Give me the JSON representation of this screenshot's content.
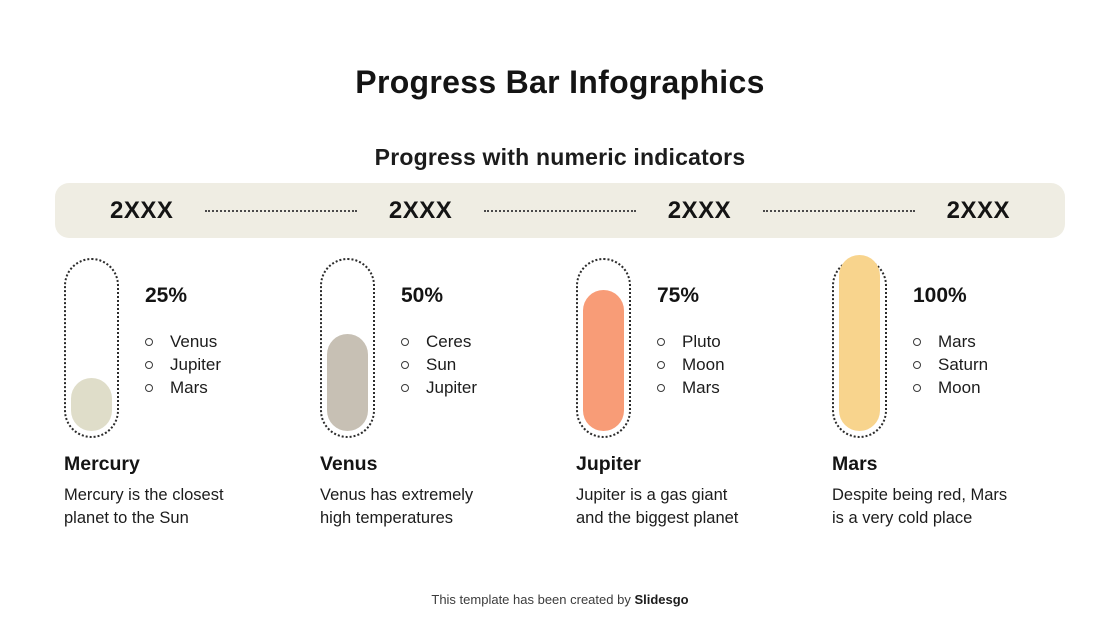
{
  "slide": {
    "title": "Progress Bar Infographics",
    "subtitle": "Progress with numeric indicators",
    "footer_prefix": "This template has been created by ",
    "footer_brand": "Slidesgo"
  },
  "timeline": {
    "years": [
      "2XXX",
      "2XXX",
      "2XXX",
      "2XXX"
    ]
  },
  "chart_data": {
    "type": "bar",
    "title": "Progress Bar Infographics",
    "subtitle": "Progress with numeric indicators",
    "categories": [
      "Mercury",
      "Venus",
      "Jupiter",
      "Mars"
    ],
    "values": [
      25,
      50,
      75,
      100
    ],
    "value_labels": [
      "25%",
      "50%",
      "75%",
      "100%"
    ],
    "ylim": [
      0,
      100
    ],
    "orientation": "vertical",
    "grid": false,
    "legend": false,
    "bar_colors": [
      "#dfddc9",
      "#c7c0b4",
      "#f89c77",
      "#f8d48d"
    ]
  },
  "colors": {
    "band_background": "#efede3",
    "text": "#1c1c1c",
    "outline": "#2c2c2c"
  },
  "planets": [
    {
      "name": "Mercury",
      "percent": "25%",
      "value": 25,
      "fill_color": "#dfddc9",
      "items": [
        "Venus",
        "Jupiter",
        "Mars"
      ],
      "description": "Mercury is the closest planet to the Sun"
    },
    {
      "name": "Venus",
      "percent": "50%",
      "value": 50,
      "fill_color": "#c7c0b4",
      "items": [
        "Ceres",
        "Sun",
        "Jupiter"
      ],
      "description": "Venus has extremely high temperatures"
    },
    {
      "name": "Jupiter",
      "percent": "75%",
      "value": 75,
      "fill_color": "#f89c77",
      "items": [
        "Pluto",
        "Moon",
        "Mars"
      ],
      "description": "Jupiter is a gas giant and the biggest planet"
    },
    {
      "name": "Mars",
      "percent": "100%",
      "value": 100,
      "fill_color": "#f8d48d",
      "items": [
        "Mars",
        "Saturn",
        "Moon"
      ],
      "description": "Despite being red, Mars is a very cold place"
    }
  ]
}
